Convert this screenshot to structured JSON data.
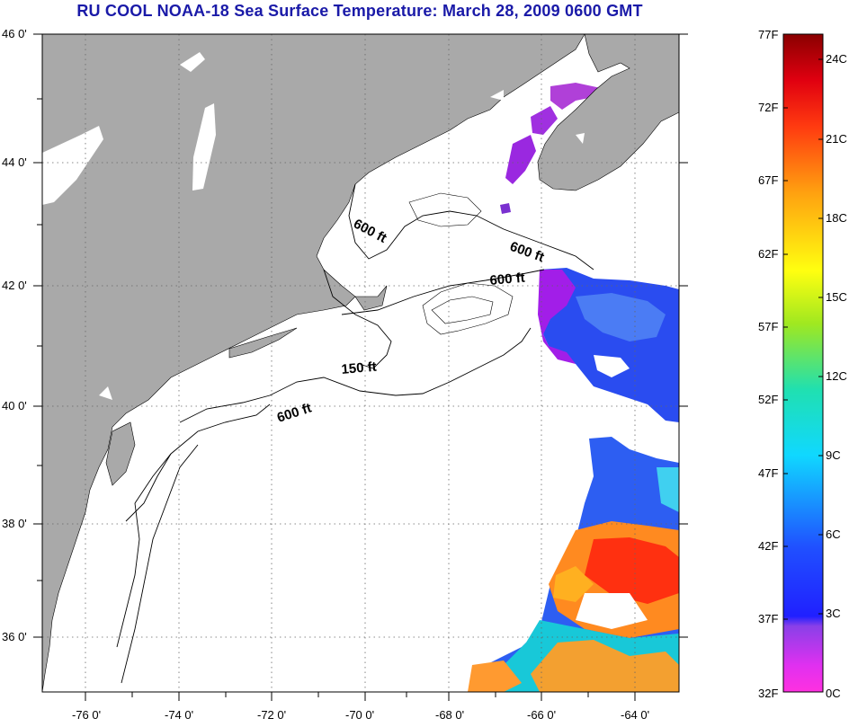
{
  "title": "RU COOL  NOAA-18  Sea Surface Temperature:  March 28, 2009 0600 GMT",
  "map": {
    "lon_labels": [
      "-76 0'",
      "-74 0'",
      "-72 0'",
      "-70 0'",
      "-68 0'",
      "-66 0'",
      "-64 0'"
    ],
    "lat_labels": [
      "46 0'",
      "44 0'",
      "42 0'",
      "40 0'",
      "38 0'",
      "36 0'"
    ],
    "contour_labels": [
      "600 ft",
      "600 ft",
      "600 ft",
      "150 ft",
      "600 ft"
    ],
    "colors": {
      "land": "#a9a9a9",
      "ocean_nodata": "#ffffff",
      "grid": "#666666"
    }
  },
  "colorbar": {
    "fahrenheit_labels": [
      "77F",
      "72F",
      "67F",
      "62F",
      "57F",
      "52F",
      "47F",
      "42F",
      "37F",
      "32F"
    ],
    "celsius_labels": [
      "24C",
      "21C",
      "18C",
      "15C",
      "12C",
      "9C",
      "6C",
      "3C",
      "0C"
    ]
  }
}
